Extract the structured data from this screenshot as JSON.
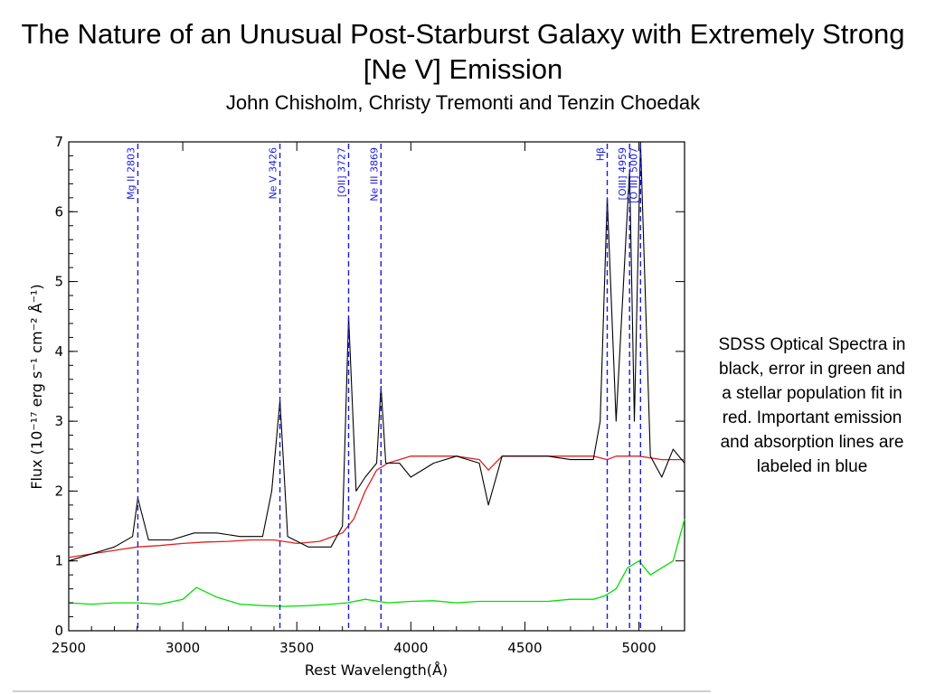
{
  "slide": {
    "title": "The Nature of an Unusual Post-Starburst Galaxy with Extremely Strong [Ne V] Emission",
    "authors": "John Chisholm, Christy Tremonti and Tenzin Choedak",
    "caption": "SDSS Optical Spectra in black, error in green and a stellar population fit in red. Important emission and absorption lines are labeled in blue"
  },
  "chart_data": {
    "type": "line",
    "title": "",
    "xlabel": "Rest Wavelength(Å)",
    "ylabel": "Flux (10⁻¹⁷ erg s⁻¹ cm⁻² Å⁻¹)",
    "xlim": [
      2500,
      5200
    ],
    "ylim": [
      0,
      7
    ],
    "xticks": [
      2500,
      3000,
      3500,
      4000,
      4500,
      5000
    ],
    "yticks": [
      0,
      1,
      2,
      3,
      4,
      5,
      6,
      7
    ],
    "grid": false,
    "colors": {
      "spectrum": "#000000",
      "fit": "#e02020",
      "error": "#00e000",
      "lines": "#1a1adc"
    },
    "series": [
      {
        "name": "SDSS Optical Spectra",
        "color": "#000000",
        "x": [
          2500,
          2600,
          2700,
          2780,
          2803,
          2850,
          2950,
          3050,
          3150,
          3250,
          3350,
          3390,
          3426,
          3460,
          3550,
          3650,
          3700,
          3727,
          3760,
          3800,
          3850,
          3869,
          3890,
          3950,
          4000,
          4100,
          4200,
          4300,
          4340,
          4400,
          4500,
          4600,
          4700,
          4800,
          4830,
          4861,
          4900,
          4959,
          4980,
          5007,
          5050,
          5100,
          5150,
          5200
        ],
        "y": [
          1.0,
          1.1,
          1.2,
          1.35,
          1.9,
          1.3,
          1.3,
          1.4,
          1.4,
          1.35,
          1.35,
          2.0,
          3.3,
          1.35,
          1.2,
          1.2,
          1.5,
          4.5,
          2.0,
          2.2,
          2.4,
          3.5,
          2.4,
          2.4,
          2.2,
          2.4,
          2.5,
          2.4,
          1.8,
          2.5,
          2.5,
          2.5,
          2.45,
          2.45,
          3.0,
          6.2,
          3.0,
          6.6,
          3.0,
          7.0,
          2.5,
          2.2,
          2.6,
          2.4
        ]
      },
      {
        "name": "stellar population fit",
        "color": "#e02020",
        "x": [
          2500,
          2600,
          2700,
          2800,
          2900,
          3000,
          3100,
          3200,
          3300,
          3400,
          3500,
          3600,
          3700,
          3750,
          3800,
          3850,
          3900,
          3950,
          4000,
          4100,
          4200,
          4300,
          4340,
          4400,
          4500,
          4600,
          4700,
          4800,
          4861,
          4900,
          4950,
          5000,
          5100,
          5200
        ],
        "y": [
          1.05,
          1.1,
          1.15,
          1.2,
          1.22,
          1.25,
          1.27,
          1.28,
          1.3,
          1.3,
          1.25,
          1.28,
          1.4,
          1.6,
          2.0,
          2.3,
          2.4,
          2.45,
          2.5,
          2.5,
          2.5,
          2.45,
          2.3,
          2.5,
          2.5,
          2.5,
          2.5,
          2.5,
          2.45,
          2.5,
          2.5,
          2.5,
          2.45,
          2.45
        ]
      },
      {
        "name": "error",
        "color": "#00e000",
        "x": [
          2500,
          2600,
          2700,
          2800,
          2900,
          3000,
          3060,
          3150,
          3250,
          3350,
          3450,
          3550,
          3650,
          3720,
          3800,
          3900,
          4000,
          4100,
          4200,
          4300,
          4400,
          4500,
          4600,
          4700,
          4800,
          4850,
          4900,
          4950,
          5000,
          5050,
          5100,
          5150,
          5200
        ],
        "y": [
          0.4,
          0.38,
          0.4,
          0.4,
          0.38,
          0.45,
          0.62,
          0.48,
          0.38,
          0.36,
          0.35,
          0.36,
          0.38,
          0.4,
          0.45,
          0.4,
          0.42,
          0.43,
          0.4,
          0.42,
          0.42,
          0.42,
          0.42,
          0.45,
          0.45,
          0.5,
          0.6,
          0.9,
          1.0,
          0.8,
          0.9,
          1.0,
          1.6
        ]
      }
    ],
    "line_markers": [
      {
        "label": "Mg II 2803",
        "x": 2803
      },
      {
        "label": "Ne V 3426",
        "x": 3426
      },
      {
        "label": "[OII] 3727",
        "x": 3727
      },
      {
        "label": "Ne III 3869",
        "x": 3869
      },
      {
        "label": "Hβ",
        "x": 4861
      },
      {
        "label": "[OIII] 4959",
        "x": 4959
      },
      {
        "label": "[O III] 5007",
        "x": 5007
      }
    ]
  }
}
